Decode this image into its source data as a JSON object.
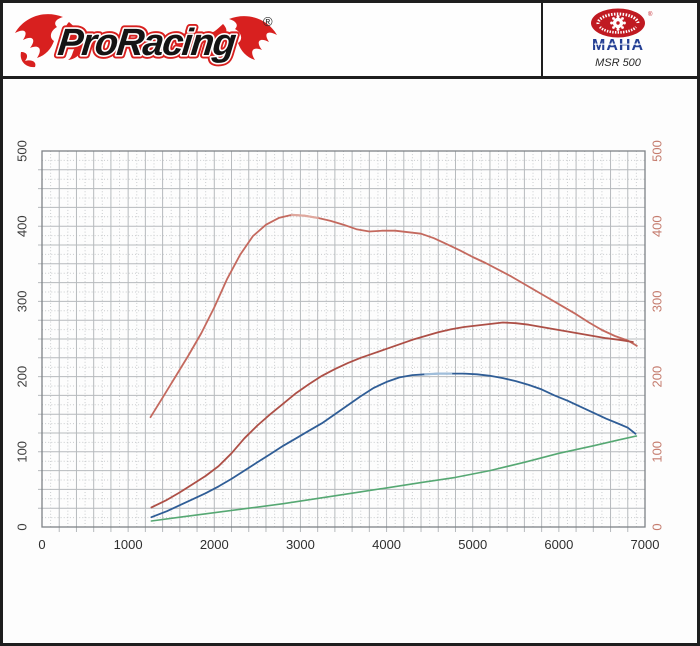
{
  "header": {
    "brand": "ProRacing",
    "brand_registered_mark": "®",
    "equipment": {
      "maker": "MAHA",
      "maker_registered_mark": "®",
      "model": "MSR 500"
    }
  },
  "icons": {
    "flame_left": "flame-icon",
    "flame_right": "flame-icon",
    "maha_emblem": "gear-emblem-icon"
  },
  "chart_data": {
    "type": "line",
    "title": "",
    "xlabel": "",
    "ylabel": "",
    "x_range": [
      0,
      7000
    ],
    "x_ticks": [
      "0",
      "1000",
      "2000",
      "3000",
      "4000",
      "5000",
      "6000",
      "7000"
    ],
    "x_tick_values": [
      0,
      1000,
      2000,
      3000,
      4000,
      5000,
      6000,
      7000
    ],
    "y_left": {
      "range": [
        0,
        500
      ],
      "ticks": [
        "0",
        "100",
        "200",
        "300",
        "400",
        "500"
      ],
      "tick_values": [
        0,
        100,
        200,
        300,
        400,
        500
      ],
      "color": "#3d3d3d"
    },
    "y_right": {
      "range": [
        0,
        500
      ],
      "ticks": [
        "0",
        "100",
        "200",
        "300",
        "400",
        "500"
      ],
      "tick_values": [
        0,
        100,
        200,
        300,
        400,
        500
      ],
      "color": "#c57c6e"
    },
    "grid": {
      "on": true,
      "solid_step_x": 200,
      "dotted_step_x": 100,
      "solid_step_y": 25,
      "dotted_step_y": 12.5,
      "solid_color": "#b6babd",
      "dotted_color": "#c9ccce",
      "border_color": "#7d8286"
    },
    "series": [
      {
        "name": "red-upper-curve",
        "color": "#c4695e",
        "width": 1.8,
        "points": [
          [
            1260,
            146
          ],
          [
            1400,
            172
          ],
          [
            1550,
            200
          ],
          [
            1700,
            228
          ],
          [
            1850,
            258
          ],
          [
            2000,
            292
          ],
          [
            2150,
            330
          ],
          [
            2300,
            362
          ],
          [
            2450,
            387
          ],
          [
            2600,
            402
          ],
          [
            2750,
            411
          ],
          [
            2900,
            415
          ],
          [
            3050,
            414
          ],
          [
            3200,
            411
          ],
          [
            3350,
            407
          ],
          [
            3500,
            402
          ],
          [
            3650,
            396
          ],
          [
            3800,
            393
          ],
          [
            3950,
            394
          ],
          [
            4100,
            394
          ],
          [
            4250,
            392
          ],
          [
            4400,
            390
          ],
          [
            4550,
            384
          ],
          [
            4700,
            376
          ],
          [
            4850,
            368
          ],
          [
            5000,
            359
          ],
          [
            5150,
            351
          ],
          [
            5300,
            342
          ],
          [
            5450,
            333
          ],
          [
            5600,
            323
          ],
          [
            5750,
            313
          ],
          [
            5900,
            303
          ],
          [
            6050,
            293
          ],
          [
            6200,
            283
          ],
          [
            6350,
            272
          ],
          [
            6500,
            262
          ],
          [
            6650,
            254
          ],
          [
            6800,
            248
          ],
          [
            6905,
            241
          ]
        ]
      },
      {
        "name": "dark-red-curve",
        "color": "#ad4f46",
        "width": 1.8,
        "points": [
          [
            1270,
            26
          ],
          [
            1450,
            36
          ],
          [
            1600,
            46
          ],
          [
            1750,
            57
          ],
          [
            1900,
            68
          ],
          [
            2050,
            81
          ],
          [
            2200,
            98
          ],
          [
            2350,
            118
          ],
          [
            2500,
            135
          ],
          [
            2650,
            150
          ],
          [
            2800,
            164
          ],
          [
            2950,
            178
          ],
          [
            3100,
            190
          ],
          [
            3250,
            201
          ],
          [
            3400,
            210
          ],
          [
            3550,
            218
          ],
          [
            3700,
            225
          ],
          [
            3850,
            231
          ],
          [
            4000,
            237
          ],
          [
            4150,
            243
          ],
          [
            4300,
            249
          ],
          [
            4450,
            254
          ],
          [
            4600,
            259
          ],
          [
            4750,
            263
          ],
          [
            4900,
            266
          ],
          [
            5050,
            268
          ],
          [
            5200,
            270
          ],
          [
            5350,
            272
          ],
          [
            5500,
            271
          ],
          [
            5650,
            269
          ],
          [
            5800,
            266
          ],
          [
            5950,
            263
          ],
          [
            6100,
            260
          ],
          [
            6250,
            257
          ],
          [
            6400,
            254
          ],
          [
            6550,
            251
          ],
          [
            6700,
            249
          ],
          [
            6860,
            246
          ]
        ]
      },
      {
        "name": "blue-curve",
        "color": "#2f5d96",
        "width": 1.8,
        "points": [
          [
            1270,
            13
          ],
          [
            1450,
            21
          ],
          [
            1600,
            29
          ],
          [
            1750,
            37
          ],
          [
            1900,
            45
          ],
          [
            2050,
            54
          ],
          [
            2200,
            64
          ],
          [
            2350,
            75
          ],
          [
            2500,
            86
          ],
          [
            2650,
            97
          ],
          [
            2800,
            108
          ],
          [
            2950,
            118
          ],
          [
            3100,
            128
          ],
          [
            3250,
            138
          ],
          [
            3400,
            150
          ],
          [
            3550,
            162
          ],
          [
            3700,
            174
          ],
          [
            3850,
            185
          ],
          [
            4000,
            193
          ],
          [
            4150,
            199
          ],
          [
            4300,
            202
          ],
          [
            4450,
            203
          ],
          [
            4600,
            204
          ],
          [
            4750,
            204
          ],
          [
            4900,
            204
          ],
          [
            5050,
            203
          ],
          [
            5200,
            201
          ],
          [
            5350,
            198
          ],
          [
            5500,
            194
          ],
          [
            5650,
            189
          ],
          [
            5800,
            183
          ],
          [
            5950,
            175
          ],
          [
            6100,
            168
          ],
          [
            6250,
            160
          ],
          [
            6400,
            152
          ],
          [
            6550,
            144
          ],
          [
            6700,
            137
          ],
          [
            6800,
            132
          ],
          [
            6890,
            124
          ]
        ]
      },
      {
        "name": "green-curve",
        "color": "#56a873",
        "width": 1.6,
        "points": [
          [
            1270,
            8
          ],
          [
            1600,
            13
          ],
          [
            2000,
            19
          ],
          [
            2400,
            25
          ],
          [
            2800,
            31
          ],
          [
            3200,
            38
          ],
          [
            3600,
            45
          ],
          [
            4000,
            52
          ],
          [
            4400,
            59
          ],
          [
            4800,
            66
          ],
          [
            5200,
            75
          ],
          [
            5600,
            86
          ],
          [
            6000,
            98
          ],
          [
            6400,
            108
          ],
          [
            6700,
            116
          ],
          [
            6900,
            121
          ]
        ]
      }
    ],
    "highlights": [
      {
        "series": 0,
        "from": 2860,
        "to": 3330,
        "color": "#dfa89e",
        "width": 2.2
      },
      {
        "series": 2,
        "from": 4390,
        "to": 4820,
        "color": "#9fbdda",
        "width": 2.2
      }
    ],
    "legend": {
      "on": false
    }
  }
}
